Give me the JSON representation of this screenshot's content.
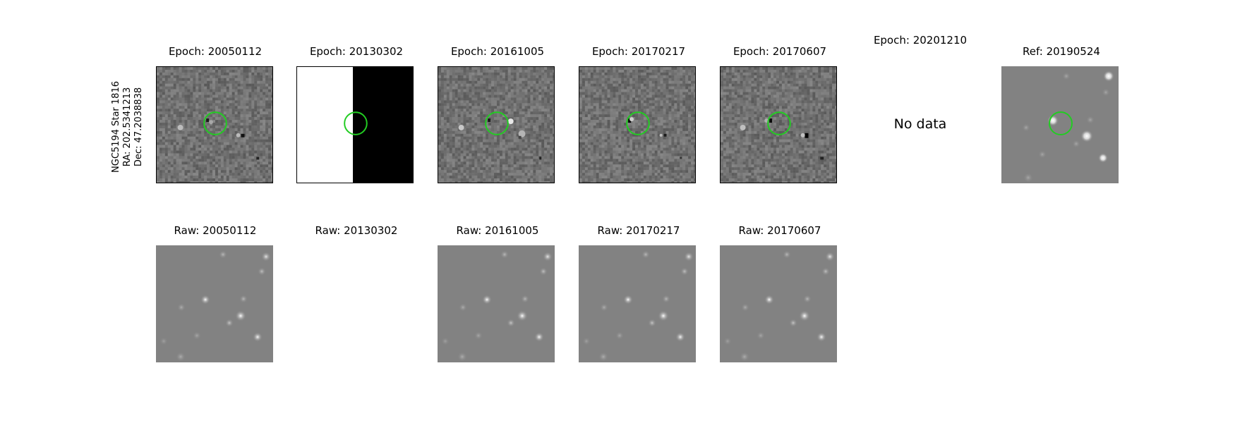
{
  "object": {
    "name": "NGC5194 Star 1816",
    "ra": "RA: 202.5341213",
    "dec": "Dec: 47.2038838"
  },
  "top_row": [
    {
      "title": "Epoch: 20050112",
      "kind": "diff",
      "has_data": true
    },
    {
      "title": "Epoch: 20130302",
      "kind": "split",
      "has_data": true
    },
    {
      "title": "Epoch: 20161005",
      "kind": "diff",
      "has_data": true
    },
    {
      "title": "Epoch: 20170217",
      "kind": "diff",
      "has_data": true
    },
    {
      "title": "Epoch: 20170607",
      "kind": "diff",
      "has_data": true
    },
    {
      "title": "Epoch: 20201210",
      "kind": "none",
      "has_data": false,
      "message": "No data"
    },
    {
      "title": "Ref: 20190524",
      "kind": "ref",
      "has_data": true
    }
  ],
  "bottom_row": [
    {
      "title": "Raw: 20050112",
      "has_data": true
    },
    {
      "title": "Raw: 20130302",
      "has_data": false
    },
    {
      "title": "Raw: 20161005",
      "has_data": true
    },
    {
      "title": "Raw: 20170217",
      "has_data": true
    },
    {
      "title": "Raw: 20170607",
      "has_data": true
    }
  ],
  "colors": {
    "marker": "#22cc22",
    "diff_background": "#7f7f7f",
    "raw_background": "#828282"
  }
}
